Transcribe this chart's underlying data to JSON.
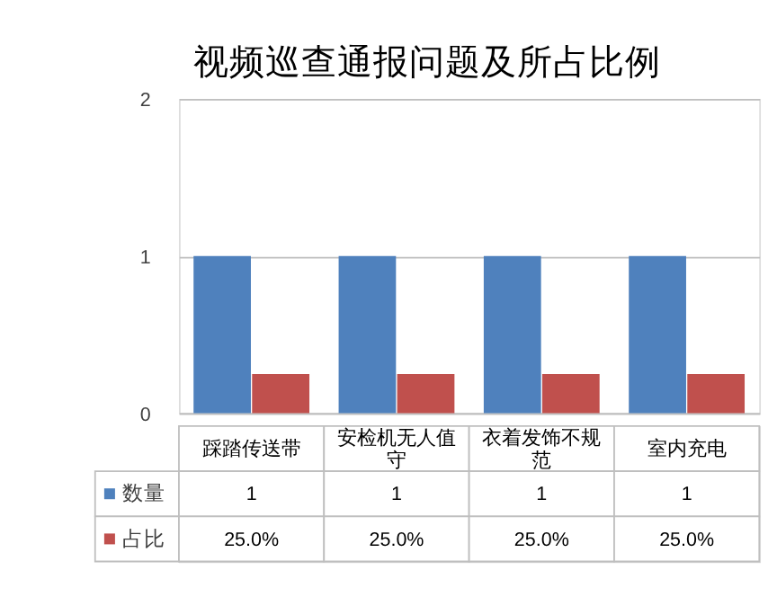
{
  "chart_data": {
    "type": "bar",
    "title": "视频巡查通报问题及所占比例",
    "categories": [
      "踩踏传送带",
      "安检机无人值守",
      "衣着发饰不规范",
      "室内充电"
    ],
    "series": [
      {
        "name": "数量",
        "color": "#4f81bd",
        "values": [
          1,
          1,
          1,
          1
        ],
        "value_labels": [
          "1",
          "1",
          "1",
          "1"
        ]
      },
      {
        "name": "占比",
        "color": "#c0504d",
        "values": [
          0.25,
          0.25,
          0.25,
          0.25
        ],
        "value_labels": [
          "25.0%",
          "25.0%",
          "25.0%",
          "25.0%"
        ]
      }
    ],
    "ylim": [
      0,
      2
    ],
    "yticks": [
      0,
      1,
      2
    ],
    "grid": "y",
    "legend": "bottom"
  }
}
